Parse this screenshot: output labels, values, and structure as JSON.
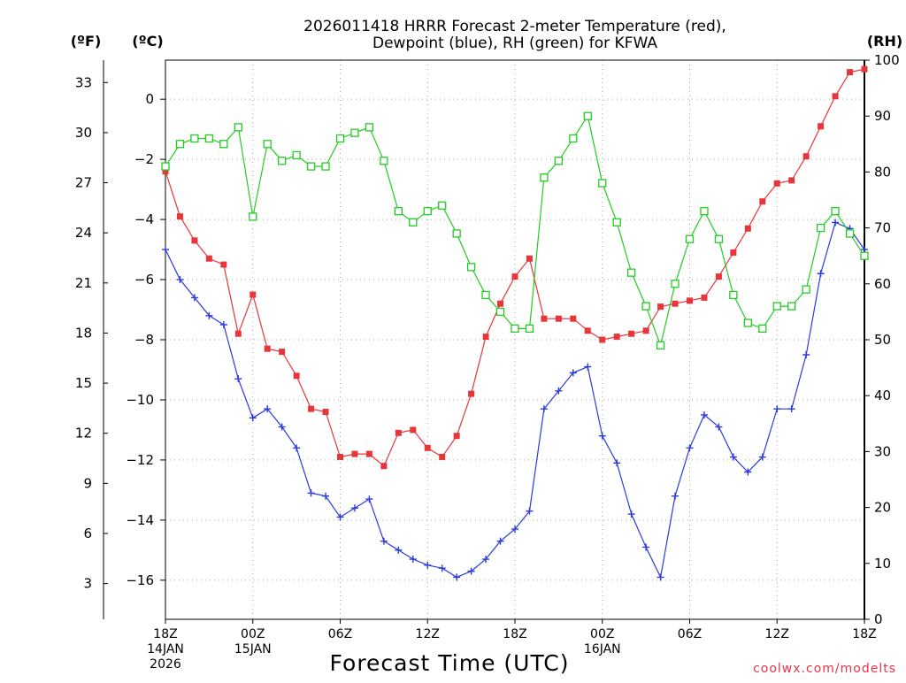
{
  "title_line1": "2026011418 HRRR Forecast 2-meter Temperature (red),",
  "title_line2": "Dewpoint (blue), RH (green) for KFWA",
  "credit": "coolwx.com/modelts",
  "colors": {
    "temperature": "#e8353a",
    "dewpoint": "#2b39e0",
    "rh": "#22cc22",
    "grid": "#aaaaaa"
  },
  "chart_data": {
    "type": "line",
    "title": "2026011418 HRRR Forecast 2-meter Temperature (red), Dewpoint (blue), RH (green) for KFWA",
    "xlabel": "Forecast Time (UTC)",
    "x": [
      0,
      1,
      2,
      3,
      4,
      5,
      6,
      7,
      8,
      9,
      10,
      11,
      12,
      13,
      14,
      15,
      16,
      17,
      18,
      19,
      20,
      21,
      22,
      23,
      24,
      25,
      26,
      27,
      28,
      29,
      30,
      31,
      32,
      33,
      34,
      35,
      36,
      37,
      38,
      39,
      40,
      41,
      42,
      43,
      44,
      45,
      46,
      47,
      48
    ],
    "xlim": [
      0,
      48
    ],
    "x_tick_hours": [
      0,
      6,
      12,
      18,
      24,
      30,
      36,
      42,
      48
    ],
    "x_tick_labels": [
      [
        "18Z",
        "14JAN",
        "2026"
      ],
      [
        "00Z",
        "15JAN"
      ],
      [
        "06Z"
      ],
      [
        "12Z"
      ],
      [
        "18Z"
      ],
      [
        "00Z",
        "16JAN"
      ],
      [
        "06Z"
      ],
      [
        "12Z"
      ],
      [
        "18Z"
      ]
    ],
    "left_axis_c": {
      "label": "(ºC)",
      "range": [
        -17.3,
        1.3
      ],
      "ticks": [
        0,
        -2,
        -4,
        -6,
        -8,
        -10,
        -12,
        -14,
        -16
      ],
      "tick_labels": [
        "0",
        "−2",
        "−4",
        "−6",
        "−8",
        "−10",
        "−12",
        "−14",
        "−16"
      ]
    },
    "left_axis_f": {
      "label": "(ºF)",
      "ticks": [
        33,
        30,
        27,
        24,
        21,
        18,
        15,
        12,
        9,
        6,
        3
      ],
      "tick_labels": [
        "33",
        "30",
        "27",
        "24",
        "21",
        "18",
        "15",
        "12",
        "9",
        "6",
        "3"
      ]
    },
    "right_axis_rh": {
      "label": "(RH)",
      "range": [
        0,
        100
      ],
      "ticks": [
        100,
        90,
        80,
        70,
        60,
        50,
        40,
        30,
        20,
        10,
        0
      ],
      "tick_labels": [
        "100",
        "90",
        "80",
        "70",
        "60",
        "50",
        "40",
        "30",
        "20",
        "10",
        "0"
      ]
    },
    "series": [
      {
        "name": "Temperature",
        "unit": "C",
        "axis": "left",
        "marker": "filled-square",
        "values": [
          -2.4,
          -3.9,
          -4.7,
          -5.3,
          -5.5,
          -7.8,
          -6.5,
          -8.3,
          -8.4,
          -9.2,
          -10.3,
          -10.4,
          -11.9,
          -11.8,
          -11.8,
          -12.2,
          -11.1,
          -11.0,
          -11.6,
          -11.9,
          -11.2,
          -9.8,
          -7.9,
          -6.8,
          -5.9,
          -5.3,
          -7.3,
          -7.3,
          -7.3,
          -7.7,
          -8.0,
          -7.9,
          -7.8,
          -7.7,
          -6.9,
          -6.8,
          -6.7,
          -6.6,
          -5.9,
          -5.1,
          -4.3,
          -3.4,
          -2.8,
          -2.7,
          -1.9,
          -0.9,
          0.1,
          0.9,
          1.0
        ]
      },
      {
        "name": "Dewpoint",
        "unit": "C",
        "axis": "left",
        "marker": "plus",
        "values": [
          -5.0,
          -6.0,
          -6.6,
          -7.2,
          -7.5,
          -9.3,
          -10.6,
          -10.3,
          -10.9,
          -11.6,
          -13.1,
          -13.2,
          -13.9,
          -13.6,
          -13.3,
          -14.7,
          -15.0,
          -15.3,
          -15.5,
          -15.6,
          -15.9,
          -15.7,
          -15.3,
          -14.7,
          -14.3,
          -13.7,
          -10.3,
          -9.7,
          -9.1,
          -8.9,
          -11.2,
          -12.1,
          -13.8,
          -14.9,
          -15.9,
          -13.2,
          -11.6,
          -10.5,
          -10.9,
          -11.9,
          -12.4,
          -11.9,
          -10.3,
          -10.3,
          -8.5,
          -5.8,
          -4.1,
          -4.3,
          -5.0
        ]
      },
      {
        "name": "RH",
        "unit": "%",
        "axis": "right",
        "marker": "open-square",
        "values": [
          81,
          85,
          86,
          86,
          85,
          88,
          72,
          85,
          82,
          83,
          81,
          81,
          86,
          87,
          88,
          82,
          73,
          71,
          73,
          74,
          69,
          63,
          58,
          55,
          52,
          52,
          79,
          82,
          86,
          90,
          78,
          71,
          62,
          56,
          49,
          60,
          68,
          73,
          68,
          58,
          53,
          52,
          56,
          56,
          59,
          70,
          73,
          69,
          65
        ]
      }
    ]
  }
}
